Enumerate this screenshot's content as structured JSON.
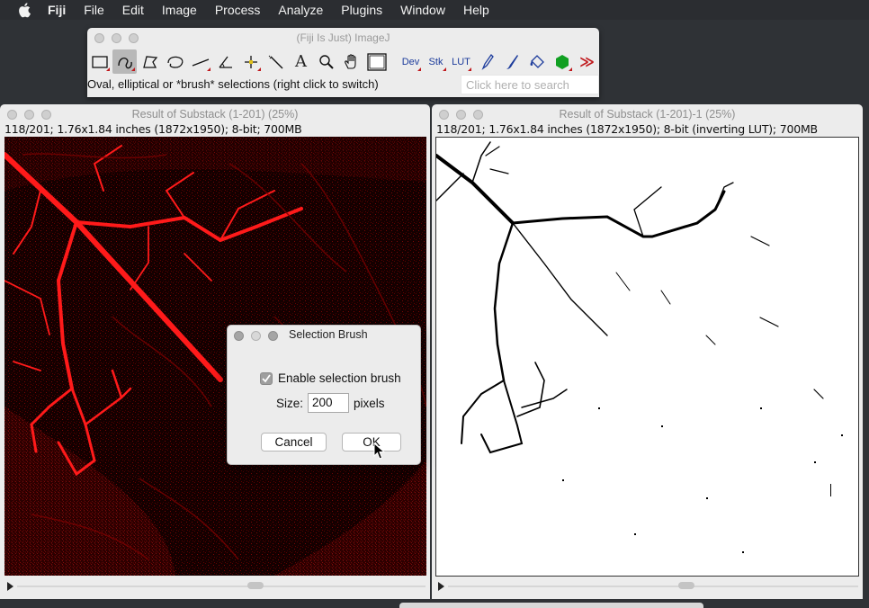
{
  "menubar": {
    "app_name": "Fiji",
    "items": [
      "File",
      "Edit",
      "Image",
      "Process",
      "Analyze",
      "Plugins",
      "Window",
      "Help"
    ]
  },
  "toolbar_window": {
    "title": "(Fiji Is Just) ImageJ",
    "status_text": "Oval, elliptical or *brush* selections (right click to switch)",
    "search_placeholder": "Click here to search",
    "tools": {
      "dev": "Dev",
      "stk": "Stk",
      "lut": "LUT",
      "text": "A",
      "more": "≫"
    }
  },
  "image_window_left": {
    "title": "Result of Substack (1-201) (25%)",
    "info": "118/201; 1.76x1.84 inches (1872x1950); 8-bit; 700MB"
  },
  "image_window_right": {
    "title": "Result of Substack (1-201)-1 (25%)",
    "info": "118/201; 1.76x1.84 inches (1872x1950); 8-bit (inverting LUT); 700MB"
  },
  "dialog": {
    "title": "Selection Brush",
    "checkbox_label": "Enable selection brush",
    "checkbox_checked": true,
    "size_label": "Size:",
    "size_value": "200",
    "size_unit": "pixels",
    "cancel_label": "Cancel",
    "ok_label": "OK"
  },
  "colors": {
    "desktop": "#2f3236",
    "menubar": "#2b2d31",
    "window_bg": "#ececec",
    "vein_red": "#ff1a1a",
    "selected_tool": "#b8b8b8"
  }
}
